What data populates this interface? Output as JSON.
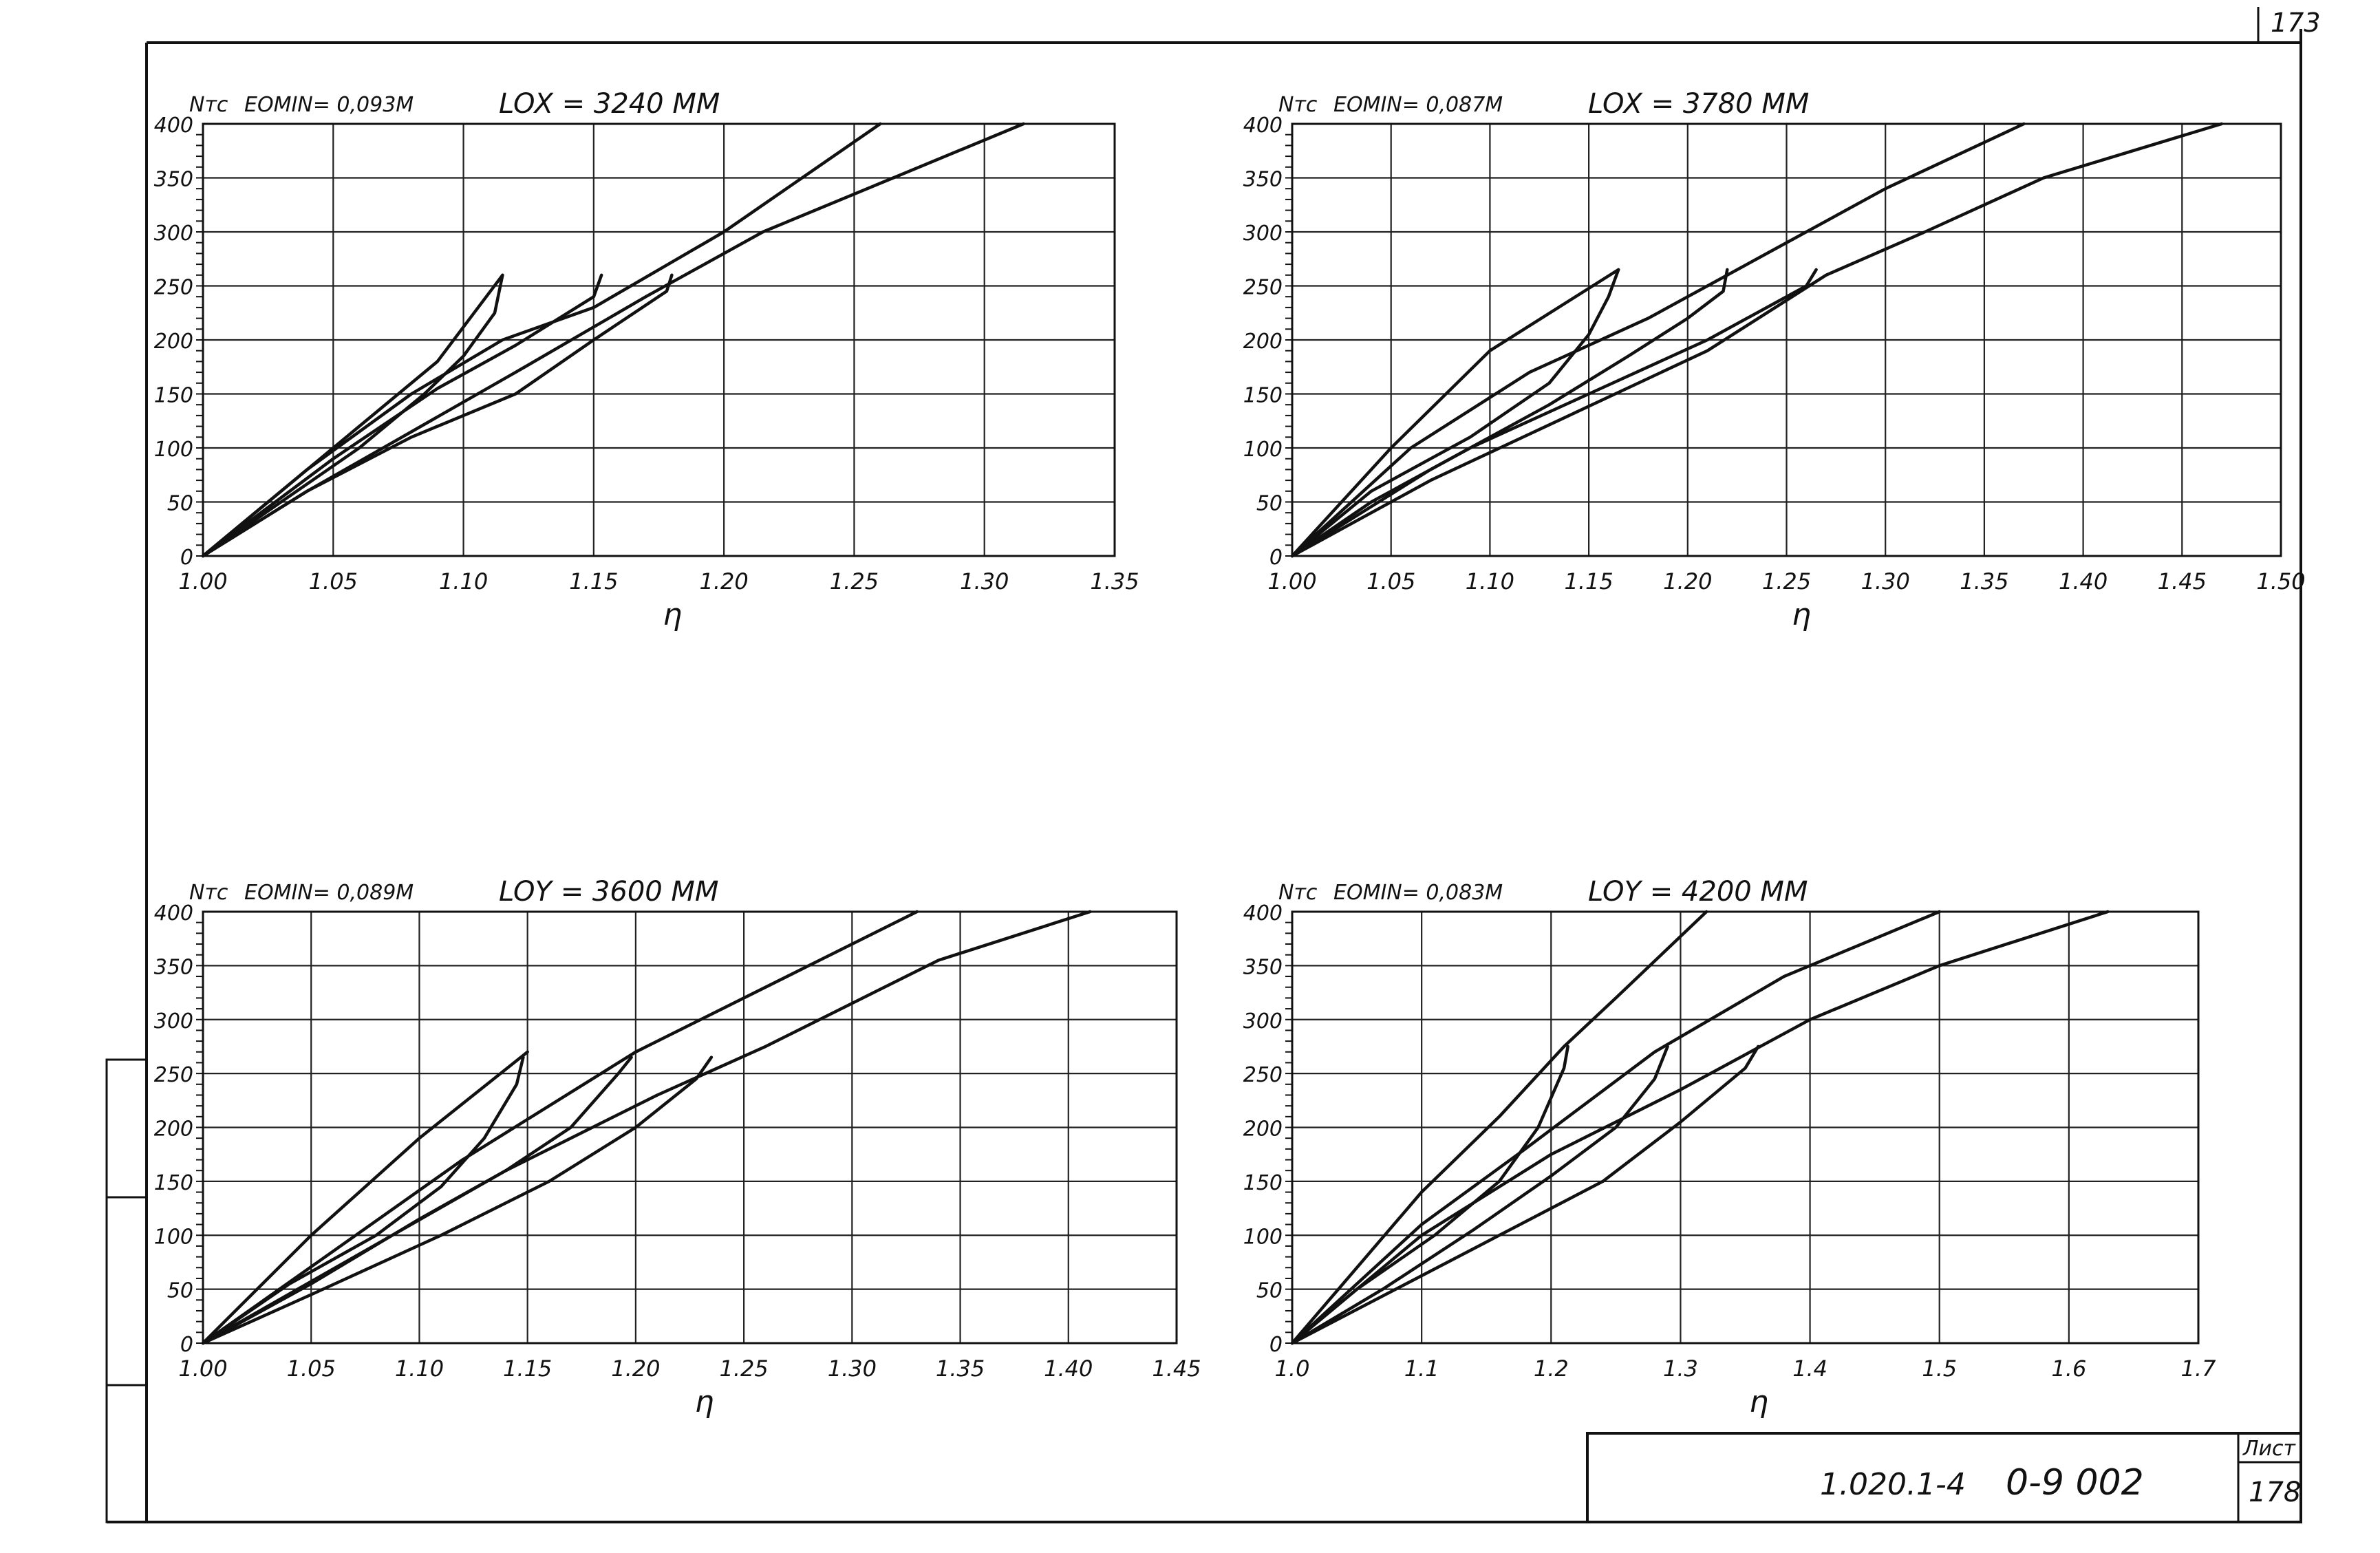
{
  "sheet": {
    "corner_number": "173",
    "doc_code": "1.020.1-4",
    "doc_series": "0-9 002",
    "list_label": "Лист",
    "list_number": "178"
  },
  "chart_data": [
    {
      "type": "line",
      "ylabel": "Nтс",
      "emin_label": "EOMIN= 0,093М",
      "length_label": "LOX = 3240 ММ",
      "xlabel": "η",
      "xlim": [
        1.0,
        1.35
      ],
      "ylim": [
        0,
        400
      ],
      "xticks": [
        "1.00",
        "1.05",
        "1.10",
        "1.15",
        "1.20",
        "1.25",
        "1.30",
        "1.35"
      ],
      "yticks": [
        "0",
        "50",
        "100",
        "150",
        "200",
        "250",
        "300",
        "350",
        "400"
      ],
      "grid": true,
      "series": [
        {
          "x": [
            1.0,
            1.05,
            1.09,
            1.115
          ],
          "y": [
            0,
            100,
            180,
            260
          ]
        },
        {
          "x": [
            1.115,
            1.112,
            1.1,
            1.085,
            1.06,
            1.0
          ],
          "y": [
            260,
            225,
            185,
            150,
            100,
            0
          ]
        },
        {
          "x": [
            1.0,
            1.04,
            1.08,
            1.115,
            1.15,
            1.2,
            1.26
          ],
          "y": [
            0,
            80,
            150,
            200,
            230,
            300,
            400
          ]
        },
        {
          "x": [
            1.153,
            1.15,
            1.14,
            1.12,
            1.09,
            1.05,
            1.0
          ],
          "y": [
            260,
            240,
            225,
            195,
            155,
            90,
            0
          ]
        },
        {
          "x": [
            1.0,
            1.04,
            1.08,
            1.12,
            1.17,
            1.215,
            1.265,
            1.315
          ],
          "y": [
            0,
            60,
            115,
            170,
            240,
            300,
            350,
            400
          ]
        },
        {
          "x": [
            1.18,
            1.178,
            1.15,
            1.12,
            1.08,
            1.04,
            1.0
          ],
          "y": [
            260,
            245,
            200,
            150,
            110,
            60,
            0
          ]
        }
      ]
    },
    {
      "type": "line",
      "ylabel": "Nтс",
      "emin_label": "EOMIN= 0,087М",
      "length_label": "LOX = 3780 ММ",
      "xlabel": "η",
      "xlim": [
        1.0,
        1.5
      ],
      "ylim": [
        0,
        400
      ],
      "xticks": [
        "1.00",
        "1.05",
        "1.10",
        "1.15",
        "1.20",
        "1.25",
        "1.30",
        "1.35",
        "1.40",
        "1.45",
        "1.50"
      ],
      "yticks": [
        "0",
        "50",
        "100",
        "150",
        "200",
        "250",
        "300",
        "350",
        "400"
      ],
      "grid": true,
      "series": [
        {
          "x": [
            1.0,
            1.05,
            1.1,
            1.165
          ],
          "y": [
            0,
            100,
            190,
            265
          ]
        },
        {
          "x": [
            1.165,
            1.16,
            1.15,
            1.13,
            1.09,
            1.04,
            1.0
          ],
          "y": [
            265,
            240,
            205,
            160,
            110,
            60,
            0
          ]
        },
        {
          "x": [
            1.0,
            1.06,
            1.12,
            1.18,
            1.24,
            1.3,
            1.37
          ],
          "y": [
            0,
            100,
            170,
            220,
            280,
            340,
            400
          ]
        },
        {
          "x": [
            1.22,
            1.218,
            1.2,
            1.17,
            1.13,
            1.07,
            1.0
          ],
          "y": [
            265,
            245,
            220,
            185,
            140,
            80,
            0
          ]
        },
        {
          "x": [
            1.0,
            1.07,
            1.14,
            1.21,
            1.27,
            1.32,
            1.38,
            1.47
          ],
          "y": [
            0,
            70,
            130,
            190,
            260,
            300,
            350,
            400
          ]
        },
        {
          "x": [
            1.265,
            1.26,
            1.21,
            1.15,
            1.09,
            1.04,
            1.0
          ],
          "y": [
            265,
            250,
            200,
            150,
            100,
            50,
            0
          ]
        }
      ]
    },
    {
      "type": "line",
      "ylabel": "Nтс",
      "emin_label": "EOMIN= 0,089М",
      "length_label": "LOY = 3600 ММ",
      "xlabel": "η",
      "xlim": [
        1.0,
        1.45
      ],
      "ylim": [
        0,
        400
      ],
      "xticks": [
        "1.00",
        "1.05",
        "1.10",
        "1.15",
        "1.20",
        "1.25",
        "1.30",
        "1.35",
        "1.40",
        "1.45"
      ],
      "yticks": [
        "0",
        "50",
        "100",
        "150",
        "200",
        "250",
        "300",
        "350",
        "400"
      ],
      "grid": true,
      "series": [
        {
          "x": [
            1.0,
            1.05,
            1.1,
            1.15
          ],
          "y": [
            0,
            100,
            190,
            270
          ]
        },
        {
          "x": [
            1.148,
            1.145,
            1.13,
            1.11,
            1.08,
            1.04,
            1.0
          ],
          "y": [
            265,
            240,
            190,
            145,
            100,
            55,
            0
          ]
        },
        {
          "x": [
            1.0,
            1.06,
            1.12,
            1.2,
            1.28,
            1.33
          ],
          "y": [
            0,
            85,
            170,
            270,
            350,
            400
          ]
        },
        {
          "x": [
            1.198,
            1.192,
            1.17,
            1.14,
            1.1,
            1.05,
            1.0
          ],
          "y": [
            265,
            250,
            200,
            160,
            115,
            55,
            0
          ]
        },
        {
          "x": [
            1.0,
            1.07,
            1.14,
            1.21,
            1.26,
            1.34,
            1.41
          ],
          "y": [
            0,
            80,
            160,
            230,
            275,
            355,
            400
          ]
        },
        {
          "x": [
            1.235,
            1.228,
            1.2,
            1.16,
            1.11,
            1.05,
            1.0
          ],
          "y": [
            265,
            245,
            200,
            150,
            100,
            45,
            0
          ]
        }
      ]
    },
    {
      "type": "line",
      "ylabel": "Nтс",
      "emin_label": "EOMIN= 0,083М",
      "length_label": "LOY = 4200 ММ",
      "xlabel": "η",
      "xlim": [
        1.0,
        1.7
      ],
      "ylim": [
        0,
        400
      ],
      "xticks": [
        "1.0",
        "1.1",
        "1.2",
        "1.3",
        "1.4",
        "1.5",
        "1.6",
        "1.7"
      ],
      "yticks": [
        "0",
        "50",
        "100",
        "150",
        "200",
        "250",
        "300",
        "350",
        "400"
      ],
      "grid": true,
      "series": [
        {
          "x": [
            1.0,
            1.1,
            1.16,
            1.21,
            1.25,
            1.32
          ],
          "y": [
            0,
            140,
            210,
            275,
            320,
            400
          ]
        },
        {
          "x": [
            1.213,
            1.21,
            1.19,
            1.16,
            1.11,
            1.05,
            1.0
          ],
          "y": [
            275,
            255,
            200,
            150,
            100,
            50,
            0
          ]
        },
        {
          "x": [
            1.0,
            1.1,
            1.18,
            1.28,
            1.38,
            1.45,
            1.5
          ],
          "y": [
            0,
            110,
            180,
            270,
            340,
            375,
            400
          ]
        },
        {
          "x": [
            1.29,
            1.28,
            1.25,
            1.2,
            1.14,
            1.07,
            1.0
          ],
          "y": [
            275,
            245,
            200,
            155,
            105,
            50,
            0
          ]
        },
        {
          "x": [
            1.0,
            1.1,
            1.2,
            1.3,
            1.4,
            1.5,
            1.63
          ],
          "y": [
            0,
            100,
            175,
            235,
            300,
            350,
            400
          ]
        },
        {
          "x": [
            1.36,
            1.35,
            1.3,
            1.24,
            1.16,
            1.08,
            1.0
          ],
          "y": [
            275,
            255,
            205,
            150,
            100,
            50,
            0
          ]
        }
      ]
    }
  ]
}
